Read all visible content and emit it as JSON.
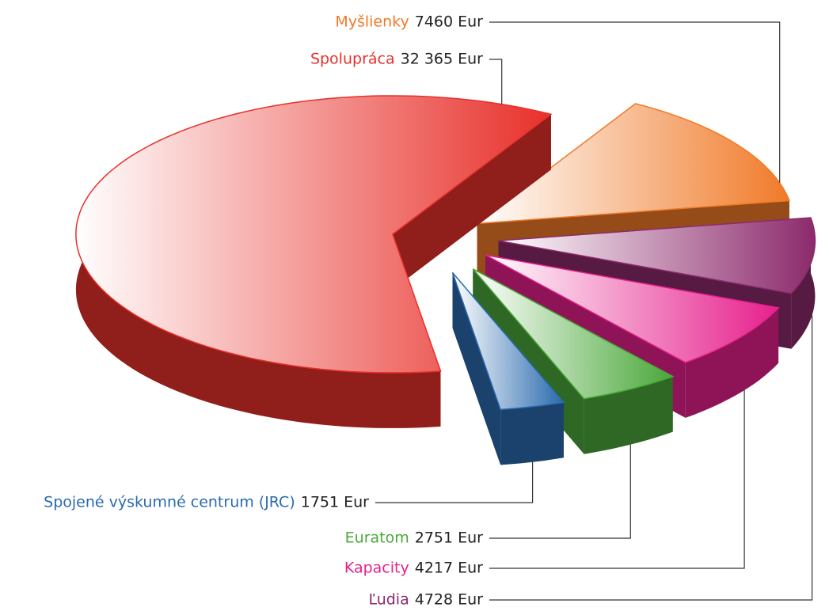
{
  "chart_data": {
    "type": "pie",
    "categories": [
      "Myšlienky",
      "Ľudia",
      "Kapacity",
      "Euratom",
      "Spojené výskumné centrum (JRC)",
      "Spolupráca"
    ],
    "values": [
      7460,
      4728,
      4217,
      2751,
      1751,
      32365
    ],
    "value_labels": [
      "7460 Eur",
      "4728 Eur",
      "4217 Eur",
      "2751 Eur",
      "1751 Eur",
      "32 365 Eur"
    ],
    "colors": [
      "#f07a28",
      "#8c2a6c",
      "#e6208c",
      "#4aa83a",
      "#2a6aae",
      "#e8302a"
    ]
  }
}
